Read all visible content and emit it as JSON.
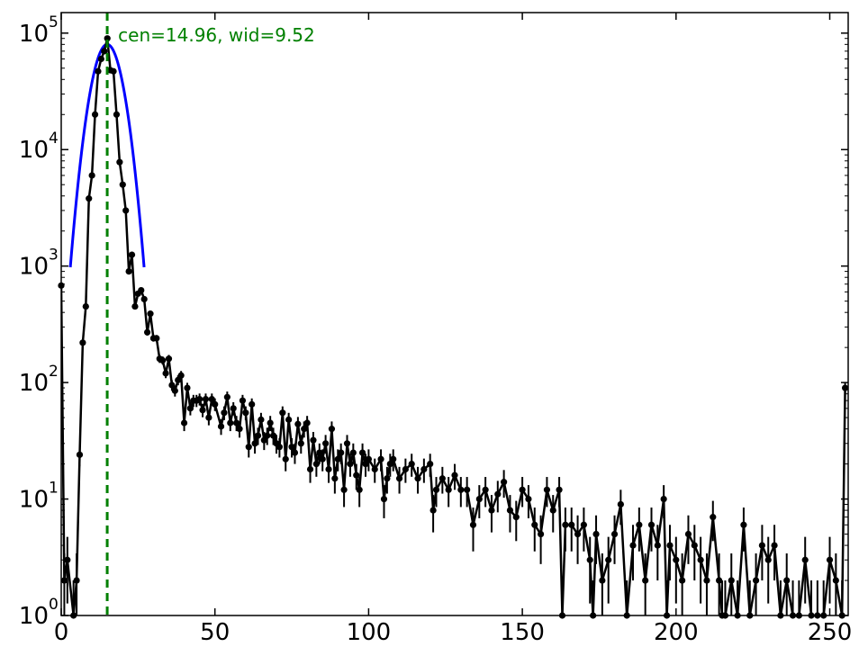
{
  "chart_data": {
    "type": "scatter",
    "title": "",
    "xlabel": "",
    "ylabel": "",
    "xlim": [
      0,
      256
    ],
    "ylim": [
      1,
      150000
    ],
    "yscale": "log",
    "grid": false,
    "x_ticks": [
      0,
      50,
      100,
      150,
      200,
      250
    ],
    "x_tick_labels": [
      "0",
      "50",
      "100",
      "150",
      "200",
      "250"
    ],
    "y_ticks": [
      1,
      10,
      100,
      1000,
      10000,
      100000
    ],
    "y_tick_labels": [
      {
        "base": "10",
        "exp": "0"
      },
      {
        "base": "10",
        "exp": "1"
      },
      {
        "base": "10",
        "exp": "2"
      },
      {
        "base": "10",
        "exp": "3"
      },
      {
        "base": "10",
        "exp": "4"
      },
      {
        "base": "10",
        "exp": "5"
      }
    ],
    "annotation": {
      "text": "cen=14.96, wid=9.52",
      "x": 18.5,
      "y": 100000,
      "color": "#008000"
    },
    "center_line": {
      "x": 14.96,
      "color": "#008000",
      "style": "dashed"
    },
    "fit": {
      "center": 14.96,
      "width": 9.52,
      "amplitude": 80000,
      "color": "#0000ff"
    },
    "series": [
      {
        "color": "#000000",
        "points": [
          [
            0,
            680
          ],
          [
            1,
            2
          ],
          [
            2,
            3
          ],
          [
            4,
            1
          ],
          [
            5,
            2
          ],
          [
            6,
            24
          ],
          [
            7,
            220
          ],
          [
            8,
            450
          ],
          [
            9,
            3800
          ],
          [
            10,
            6000
          ],
          [
            11,
            20000
          ],
          [
            12,
            47000
          ],
          [
            13,
            60000
          ],
          [
            14,
            70000
          ],
          [
            15,
            90000
          ],
          [
            16,
            48000
          ],
          [
            17,
            47000
          ],
          [
            18,
            20000
          ],
          [
            19,
            7800
          ],
          [
            20,
            5000
          ],
          [
            21,
            3000
          ],
          [
            22,
            900
          ],
          [
            23,
            1250
          ],
          [
            24,
            450
          ],
          [
            25,
            580
          ],
          [
            26,
            620
          ],
          [
            27,
            520
          ],
          [
            28,
            270
          ],
          [
            29,
            390
          ],
          [
            30,
            240
          ],
          [
            31,
            240
          ],
          [
            32,
            160
          ],
          [
            33,
            155
          ],
          [
            34,
            120
          ],
          [
            35,
            160
          ],
          [
            36,
            95
          ],
          [
            37,
            85
          ],
          [
            38,
            105
          ],
          [
            39,
            115
          ],
          [
            40,
            45
          ],
          [
            41,
            90
          ],
          [
            42,
            60
          ],
          [
            43,
            70
          ],
          [
            44,
            70
          ],
          [
            45,
            72
          ],
          [
            46,
            58
          ],
          [
            47,
            72
          ],
          [
            48,
            50
          ],
          [
            49,
            72
          ],
          [
            50,
            65
          ],
          [
            52,
            42
          ],
          [
            53,
            55
          ],
          [
            54,
            75
          ],
          [
            55,
            45
          ],
          [
            56,
            60
          ],
          [
            57,
            45
          ],
          [
            58,
            40
          ],
          [
            59,
            70
          ],
          [
            60,
            55
          ],
          [
            61,
            28
          ],
          [
            62,
            65
          ],
          [
            63,
            30
          ],
          [
            64,
            35
          ],
          [
            65,
            48
          ],
          [
            66,
            32
          ],
          [
            67,
            35
          ],
          [
            68,
            45
          ],
          [
            69,
            35
          ],
          [
            70,
            30
          ],
          [
            71,
            28
          ],
          [
            72,
            55
          ],
          [
            73,
            22
          ],
          [
            74,
            48
          ],
          [
            75,
            28
          ],
          [
            76,
            25
          ],
          [
            77,
            44
          ],
          [
            78,
            30
          ],
          [
            79,
            40
          ],
          [
            80,
            45
          ],
          [
            81,
            18
          ],
          [
            82,
            32
          ],
          [
            83,
            20
          ],
          [
            84,
            25
          ],
          [
            85,
            22
          ],
          [
            86,
            30
          ],
          [
            87,
            18
          ],
          [
            88,
            40
          ],
          [
            89,
            15
          ],
          [
            90,
            22
          ],
          [
            91,
            25
          ],
          [
            92,
            12
          ],
          [
            93,
            30
          ],
          [
            94,
            20
          ],
          [
            95,
            25
          ],
          [
            96,
            16
          ],
          [
            97,
            12
          ],
          [
            98,
            25
          ],
          [
            99,
            20
          ],
          [
            100,
            22
          ],
          [
            102,
            18
          ],
          [
            104,
            22
          ],
          [
            105,
            10
          ],
          [
            106,
            15
          ],
          [
            107,
            20
          ],
          [
            108,
            22
          ],
          [
            110,
            15
          ],
          [
            112,
            18
          ],
          [
            114,
            20
          ],
          [
            116,
            15
          ],
          [
            118,
            18
          ],
          [
            120,
            20
          ],
          [
            121,
            8
          ],
          [
            122,
            12
          ],
          [
            124,
            15
          ],
          [
            126,
            12
          ],
          [
            128,
            16
          ],
          [
            130,
            12
          ],
          [
            132,
            12
          ],
          [
            134,
            6
          ],
          [
            136,
            10
          ],
          [
            138,
            12
          ],
          [
            140,
            8
          ],
          [
            142,
            11
          ],
          [
            144,
            14
          ],
          [
            146,
            8
          ],
          [
            148,
            7
          ],
          [
            150,
            12
          ],
          [
            152,
            10
          ],
          [
            154,
            6
          ],
          [
            156,
            5
          ],
          [
            158,
            12
          ],
          [
            160,
            8
          ],
          [
            162,
            12
          ],
          [
            163,
            1
          ],
          [
            164,
            6
          ],
          [
            166,
            6
          ],
          [
            168,
            5
          ],
          [
            170,
            6
          ],
          [
            172,
            3
          ],
          [
            173,
            1
          ],
          [
            174,
            5
          ],
          [
            176,
            2
          ],
          [
            178,
            3
          ],
          [
            180,
            5
          ],
          [
            182,
            9
          ],
          [
            184,
            1
          ],
          [
            186,
            4
          ],
          [
            188,
            6
          ],
          [
            190,
            2
          ],
          [
            192,
            6
          ],
          [
            194,
            4
          ],
          [
            196,
            10
          ],
          [
            197,
            1
          ],
          [
            198,
            4
          ],
          [
            200,
            3
          ],
          [
            202,
            2
          ],
          [
            204,
            5
          ],
          [
            206,
            4
          ],
          [
            208,
            3
          ],
          [
            210,
            2
          ],
          [
            212,
            7
          ],
          [
            214,
            2
          ],
          [
            215,
            1
          ],
          [
            216,
            1
          ],
          [
            218,
            2
          ],
          [
            220,
            1
          ],
          [
            222,
            6
          ],
          [
            224,
            1
          ],
          [
            226,
            2
          ],
          [
            228,
            4
          ],
          [
            230,
            3
          ],
          [
            232,
            4
          ],
          [
            234,
            1
          ],
          [
            236,
            2
          ],
          [
            238,
            1
          ],
          [
            240,
            1
          ],
          [
            242,
            3
          ],
          [
            244,
            1
          ],
          [
            246,
            1
          ],
          [
            248,
            1
          ],
          [
            250,
            3
          ],
          [
            252,
            2
          ],
          [
            254,
            1
          ],
          [
            255,
            90
          ]
        ]
      }
    ]
  }
}
